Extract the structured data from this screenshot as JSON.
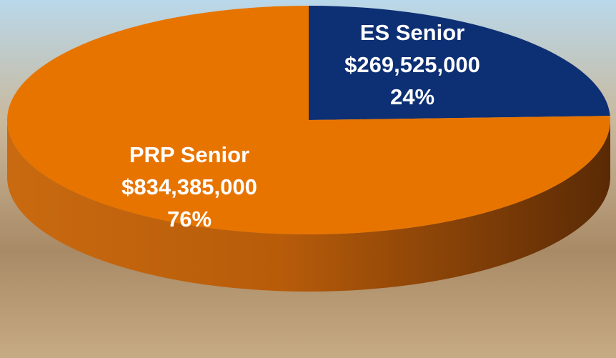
{
  "chart_data": {
    "type": "pie",
    "categories": [
      "ES Senior",
      "PRP Senior"
    ],
    "values": [
      269525000,
      834385000
    ],
    "value_labels": [
      "$269,525,000",
      "$834,385,000"
    ],
    "percent_labels": [
      "24%",
      "76%"
    ],
    "colors": [
      "#0d2f73",
      "#e87400"
    ]
  }
}
